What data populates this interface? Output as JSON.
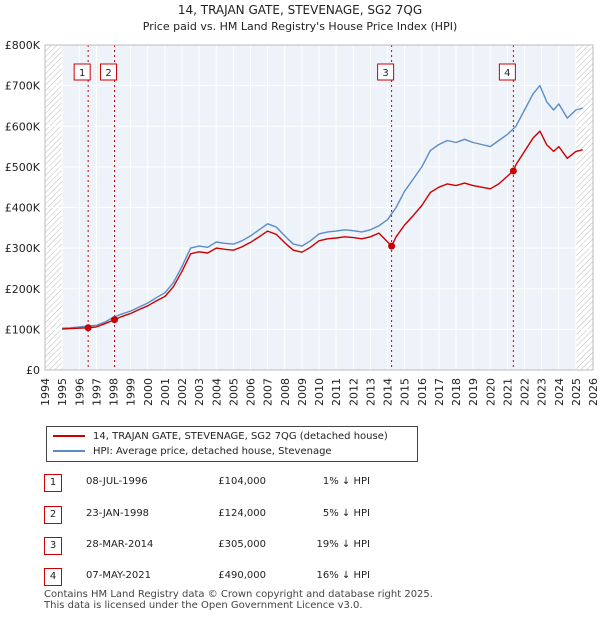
{
  "chart_data": {
    "type": "line",
    "title": "14, TRAJAN GATE, STEVENAGE, SG2 7QG",
    "subtitle": "Price paid vs. HM Land Registry's House Price Index (HPI)",
    "xlabel": "",
    "ylabel": "",
    "xlim": [
      1994.0,
      2026.0
    ],
    "ylim": [
      0,
      800000
    ],
    "y_ticks": [
      0,
      100000,
      200000,
      300000,
      400000,
      500000,
      600000,
      700000,
      800000
    ],
    "y_tick_labels": [
      "£0",
      "£100K",
      "£200K",
      "£300K",
      "£400K",
      "£500K",
      "£600K",
      "£700K",
      "£800K"
    ],
    "x_ticks": [
      1994,
      1995,
      1996,
      1997,
      1998,
      1999,
      2000,
      2001,
      2002,
      2003,
      2004,
      2005,
      2006,
      2007,
      2008,
      2009,
      2010,
      2011,
      2012,
      2013,
      2014,
      2015,
      2016,
      2017,
      2018,
      2019,
      2020,
      2021,
      2022,
      2023,
      2024,
      2025,
      2026
    ],
    "x_tick_labels": [
      "1994",
      "1995",
      "1996",
      "1997",
      "1998",
      "1999",
      "2000",
      "2001",
      "2002",
      "2003",
      "2004",
      "2005",
      "2006",
      "2007",
      "2008",
      "2009",
      "2010",
      "2011",
      "2012",
      "2013",
      "2014",
      "2015",
      "2016",
      "2017",
      "2018",
      "2019",
      "2020",
      "2021",
      "2022",
      "2023",
      "2024",
      "2025",
      "2026"
    ],
    "grid": true,
    "series": [
      {
        "name": "HPI: Average price, detached house, Stevenage",
        "color": "#5b8cc6",
        "x": [
          1995.0,
          1995.5,
          1996.0,
          1996.5,
          1997.0,
          1997.5,
          1998.0,
          1998.5,
          1999.0,
          1999.5,
          2000.0,
          2000.5,
          2001.0,
          2001.5,
          2002.0,
          2002.5,
          2003.0,
          2003.5,
          2004.0,
          2004.5,
          2005.0,
          2005.5,
          2006.0,
          2006.5,
          2007.0,
          2007.5,
          2008.0,
          2008.5,
          2009.0,
          2009.5,
          2010.0,
          2010.5,
          2011.0,
          2011.5,
          2012.0,
          2012.5,
          2013.0,
          2013.5,
          2014.0,
          2014.5,
          2015.0,
          2015.5,
          2016.0,
          2016.5,
          2017.0,
          2017.5,
          2018.0,
          2018.5,
          2019.0,
          2019.5,
          2020.0,
          2020.5,
          2021.0,
          2021.5,
          2022.0,
          2022.5,
          2022.9,
          2023.3,
          2023.7,
          2024.0,
          2024.5,
          2025.0,
          2025.4
        ],
        "values": [
          103000,
          104000,
          106000,
          108000,
          110000,
          118000,
          130000,
          138000,
          145000,
          155000,
          165000,
          178000,
          190000,
          215000,
          255000,
          300000,
          305000,
          302000,
          315000,
          312000,
          310000,
          318000,
          330000,
          345000,
          360000,
          352000,
          330000,
          310000,
          305000,
          318000,
          335000,
          340000,
          342000,
          345000,
          343000,
          340000,
          345000,
          355000,
          370000,
          400000,
          440000,
          470000,
          500000,
          540000,
          555000,
          565000,
          560000,
          568000,
          560000,
          555000,
          550000,
          565000,
          580000,
          600000,
          640000,
          680000,
          700000,
          660000,
          640000,
          655000,
          620000,
          640000,
          645000
        ]
      },
      {
        "name": "14, TRAJAN GATE, STEVENAGE, SG2 7QG (detached house)",
        "color": "#cc0000",
        "x": [
          1995.0,
          1995.5,
          1996.0,
          1996.52,
          1997.0,
          1997.5,
          1998.06,
          1998.5,
          1999.0,
          1999.5,
          2000.0,
          2000.5,
          2001.0,
          2001.5,
          2002.0,
          2002.5,
          2003.0,
          2003.5,
          2004.0,
          2004.5,
          2005.0,
          2005.5,
          2006.0,
          2006.5,
          2007.0,
          2007.5,
          2008.0,
          2008.5,
          2009.0,
          2009.5,
          2010.0,
          2010.5,
          2011.0,
          2011.5,
          2012.0,
          2012.5,
          2013.0,
          2013.5,
          2014.24,
          2014.5,
          2015.0,
          2015.5,
          2016.0,
          2016.5,
          2017.0,
          2017.5,
          2018.0,
          2018.5,
          2019.0,
          2019.5,
          2020.0,
          2020.5,
          2021.35,
          2021.5,
          2022.0,
          2022.5,
          2022.9,
          2023.3,
          2023.7,
          2024.0,
          2024.5,
          2025.0,
          2025.4
        ],
        "values": [
          101000,
          102000,
          103000,
          104000,
          106000,
          114000,
          124000,
          132000,
          139000,
          149000,
          158000,
          170000,
          181000,
          205000,
          243000,
          286000,
          291000,
          288000,
          300000,
          297000,
          295000,
          303000,
          314000,
          328000,
          342000,
          334000,
          313000,
          295000,
          290000,
          302000,
          318000,
          323000,
          325000,
          328000,
          326000,
          323000,
          328000,
          337000,
          305000,
          328000,
          357000,
          380000,
          405000,
          437000,
          450000,
          458000,
          454000,
          460000,
          454000,
          450000,
          446000,
          458000,
          490000,
          505000,
          538000,
          571000,
          588000,
          554000,
          538000,
          550000,
          521000,
          538000,
          542000
        ]
      }
    ],
    "transactions": [
      {
        "marker": "1",
        "date": "08-JUL-1996",
        "x": 1996.52,
        "price": 104000,
        "price_label": "£104,000",
        "hpi": "1% ↓ HPI"
      },
      {
        "marker": "2",
        "date": "23-JAN-1998",
        "x": 1998.06,
        "price": 124000,
        "price_label": "£124,000",
        "hpi": "5% ↓ HPI"
      },
      {
        "marker": "3",
        "date": "28-MAR-2014",
        "x": 2014.24,
        "price": 305000,
        "price_label": "£305,000",
        "hpi": "19% ↓ HPI"
      },
      {
        "marker": "4",
        "date": "07-MAY-2021",
        "x": 2021.35,
        "price": 490000,
        "price_label": "£490,000",
        "hpi": "16% ↓ HPI"
      }
    ],
    "shaded_regions": [
      [
        1994.0,
        1995.0
      ],
      [
        2025.0,
        2026.0
      ]
    ],
    "legend_position": "below"
  },
  "colors": {
    "price_paid": "#cc0000",
    "hpi": "#5b8cc6",
    "plot_background": "#eef2f9",
    "grid": "#ffffff",
    "hatch": "#bbbbbb"
  },
  "footer": {
    "line1": "Contains HM Land Registry data © Crown copyright and database right 2025.",
    "line2": "This data is licensed under the Open Government Licence v3.0."
  }
}
